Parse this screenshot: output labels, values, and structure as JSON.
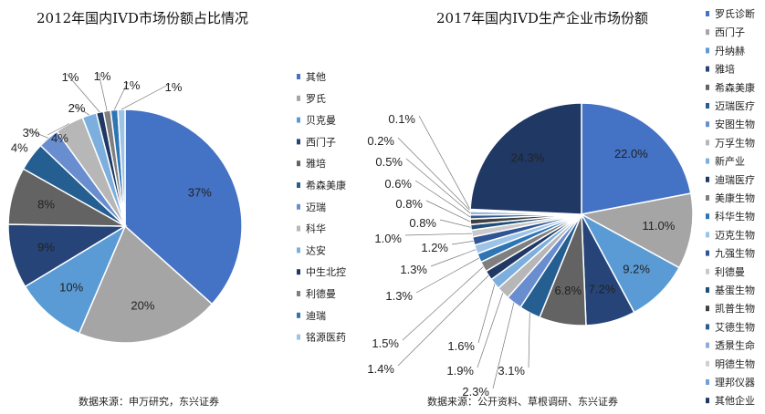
{
  "charts": [
    {
      "title": "2012年国内IVD市场份额占比情况",
      "source": "数据来源：申万研究，东兴证券"
    },
    {
      "title": "2017年国内IVD生产企业市场份额",
      "source": "数据来源：公开资料、草根调研、东兴证券"
    }
  ],
  "chart_data": [
    {
      "type": "pie",
      "title": "2012年国内IVD市场份额占比情况",
      "legend_position": "right",
      "slices": [
        {
          "name": "其他",
          "value": 37,
          "label": "37%",
          "color": "#4472C4"
        },
        {
          "name": "罗氏",
          "value": 20,
          "label": "20%",
          "color": "#A5A5A5"
        },
        {
          "name": "贝克曼",
          "value": 10,
          "label": "10%",
          "color": "#5B9BD5"
        },
        {
          "name": "西门子",
          "value": 9,
          "label": "9%",
          "color": "#264478"
        },
        {
          "name": "雅培",
          "value": 8,
          "label": "8%",
          "color": "#636363"
        },
        {
          "name": "希森美康",
          "value": 4,
          "label": "4%",
          "color": "#255E91"
        },
        {
          "name": "迈瑞",
          "value": 3,
          "label": "3%",
          "color": "#698ED0"
        },
        {
          "name": "科华",
          "value": 4,
          "label": "4%",
          "color": "#B7B7B7"
        },
        {
          "name": "达安",
          "value": 2,
          "label": "2%",
          "color": "#7CAFDD"
        },
        {
          "name": "中生北控",
          "value": 1,
          "label": "1%",
          "color": "#1F3864"
        },
        {
          "name": "利德曼",
          "value": 1,
          "label": "1%",
          "color": "#7F7F7F"
        },
        {
          "name": "迪瑞",
          "value": 1,
          "label": "1%",
          "color": "#2E75B6"
        },
        {
          "name": "铭源医药",
          "value": 1,
          "label": "1%",
          "color": "#9DC3E6"
        }
      ]
    },
    {
      "type": "pie",
      "title": "2017年国内IVD生产企业市场份额",
      "legend_position": "right",
      "slices": [
        {
          "name": "罗氏诊断",
          "value": 22.0,
          "label": "22.0%",
          "color": "#4472C4"
        },
        {
          "name": "西门子",
          "value": 11.0,
          "label": "11.0%",
          "color": "#A5A5A5"
        },
        {
          "name": "丹纳赫",
          "value": 9.2,
          "label": "9.2%",
          "color": "#5B9BD5"
        },
        {
          "name": "雅培",
          "value": 7.2,
          "label": "7.2%",
          "color": "#264478"
        },
        {
          "name": "希森美康",
          "value": 6.8,
          "label": "6.8%",
          "color": "#636363"
        },
        {
          "name": "迈瑞医疗",
          "value": 3.1,
          "label": "3.1%",
          "color": "#255E91"
        },
        {
          "name": "安图生物",
          "value": 2.3,
          "label": "2.3%",
          "color": "#698ED0"
        },
        {
          "name": "万孚生物",
          "value": 1.9,
          "label": "1.9%",
          "color": "#B7B7B7"
        },
        {
          "name": "新产业",
          "value": 1.6,
          "label": "1.6%",
          "color": "#7CAFDD"
        },
        {
          "name": "迪瑞医疗",
          "value": 1.4,
          "label": "1.4%",
          "color": "#1F3864"
        },
        {
          "name": "美康生物",
          "value": 1.5,
          "label": "1.5%",
          "color": "#7F7F7F"
        },
        {
          "name": "科华生物",
          "value": 1.3,
          "label": "1.3%",
          "color": "#2E75B6"
        },
        {
          "name": "迈克生物",
          "value": 1.3,
          "label": "1.3%",
          "color": "#9DC3E6"
        },
        {
          "name": "九强生物",
          "value": 1.2,
          "label": "1.2%",
          "color": "#2F5597"
        },
        {
          "name": "利德曼",
          "value": 1.0,
          "label": "1.0%",
          "color": "#C9C9C9"
        },
        {
          "name": "基蛋生物",
          "value": 0.8,
          "label": "0.8%",
          "color": "#1F4E79"
        },
        {
          "name": "凯普生物",
          "value": 0.8,
          "label": "0.8%",
          "color": "#404040"
        },
        {
          "name": "艾德生物",
          "value": 0.6,
          "label": "0.6%",
          "color": "#2E5C8A"
        },
        {
          "name": "透景生命",
          "value": 0.5,
          "label": "0.5%",
          "color": "#8FAADC"
        },
        {
          "name": "明德生物",
          "value": 0.2,
          "label": "0.2%",
          "color": "#D0D0D0"
        },
        {
          "name": "理邦仪器",
          "value": 0.1,
          "label": "0.1%",
          "color": "#6FA0D8"
        },
        {
          "name": "其他企业",
          "value": 24.3,
          "label": "24.3%",
          "color": "#203864"
        }
      ]
    }
  ]
}
